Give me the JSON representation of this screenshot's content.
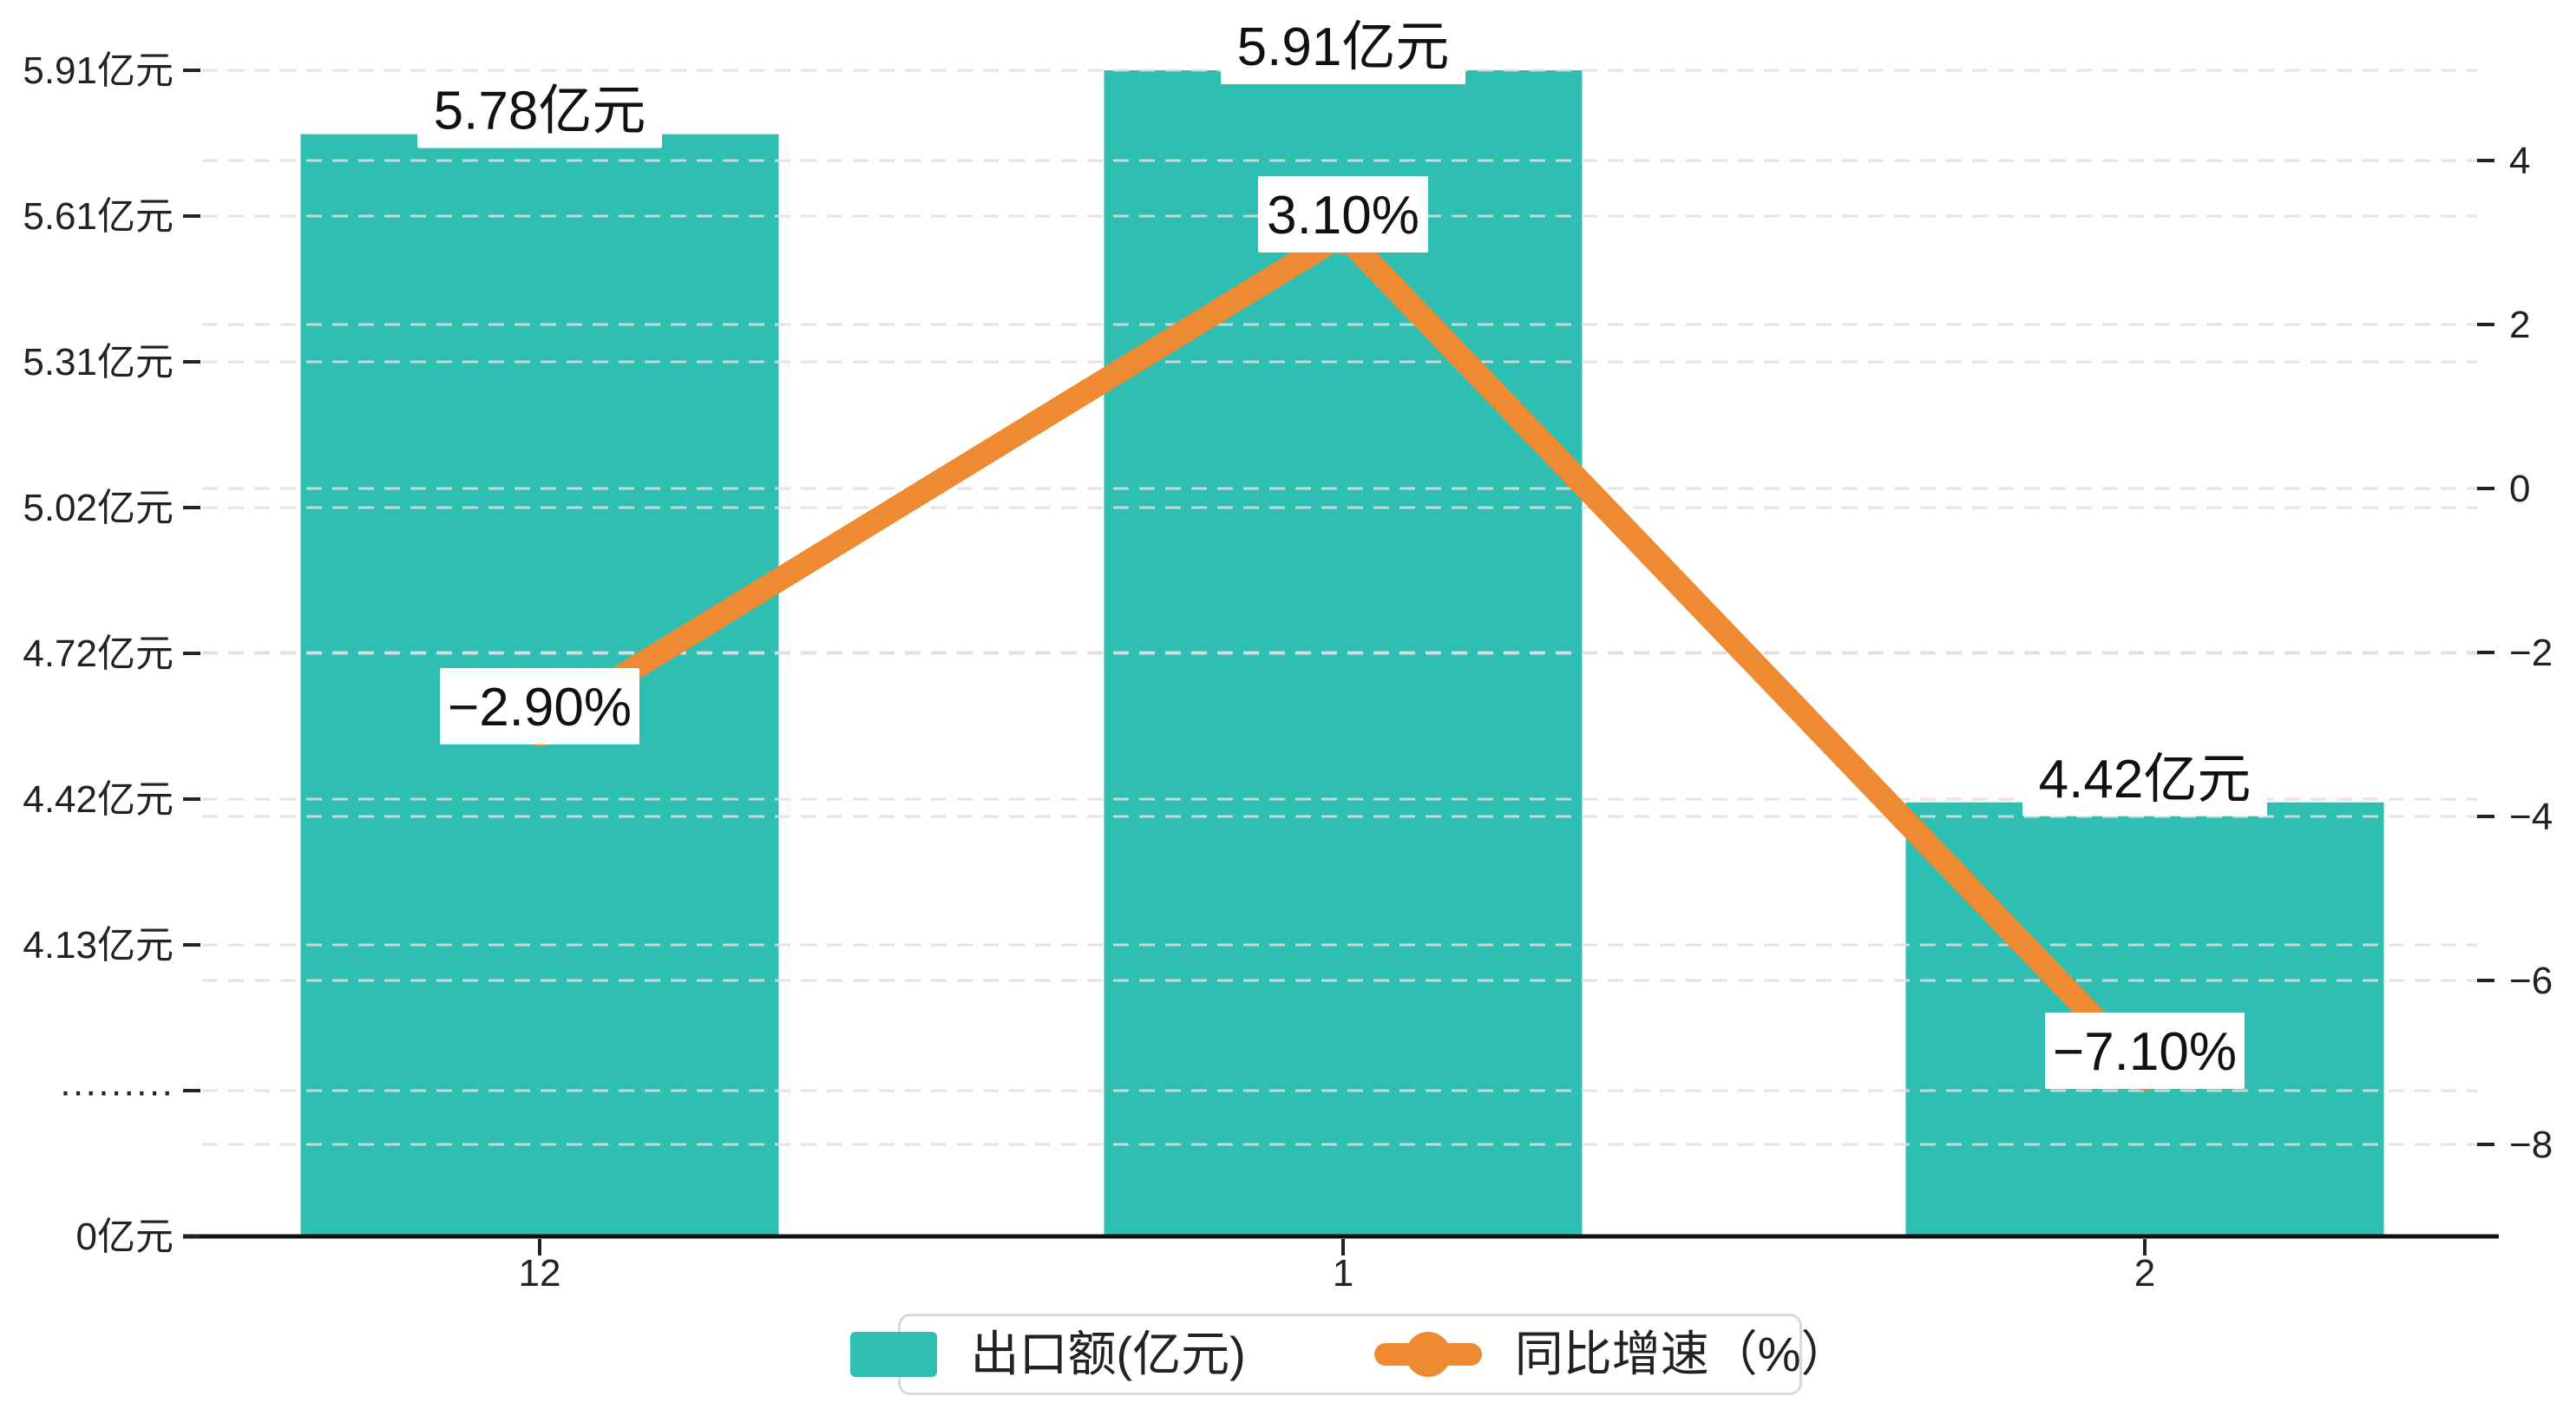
{
  "chart_data": {
    "type": "bar",
    "categories": [
      "12",
      "1",
      "2"
    ],
    "series": [
      {
        "name": "出口额(亿元)",
        "type": "bar",
        "values": [
          5.78,
          5.91,
          4.42
        ],
        "labels": [
          "5.78亿元",
          "5.91亿元",
          "4.42亿元"
        ],
        "color": "#2FBFB2"
      },
      {
        "name": "同比增速（%）",
        "type": "line",
        "values": [
          -2.9,
          3.1,
          -7.1
        ],
        "labels": [
          "−2.90%",
          "3.10%",
          "−7.10%"
        ],
        "color": "#EE8A31"
      }
    ],
    "left_axis": {
      "title": "",
      "unit": "亿元",
      "has_break": true,
      "ticks": [
        "5.91亿元",
        "5.61亿元",
        "5.31亿元",
        "5.02亿元",
        "4.72亿元",
        "4.42亿元",
        "4.13亿元",
        "·········",
        "0亿元"
      ],
      "tick_values_top_to_bottom": [
        5.91,
        5.61,
        5.31,
        5.02,
        4.72,
        4.42,
        4.13,
        null,
        0
      ]
    },
    "right_axis": {
      "title": "",
      "unit": "%",
      "range": [
        -8,
        4
      ],
      "ticks": [
        "4",
        "2",
        "0",
        "−2",
        "−4",
        "−6",
        "−8"
      ],
      "tick_values": [
        4,
        2,
        0,
        -2,
        -4,
        -6,
        -8
      ]
    },
    "grid": true,
    "grid_style": "dashed",
    "legend_position": "bottom"
  },
  "legend": {
    "items": [
      {
        "label": "出口额(亿元)",
        "color": "#2FBFB2",
        "marker": "bar-swatch"
      },
      {
        "label": "同比增速（%）",
        "color": "#EE8A31",
        "marker": "line-with-dot"
      }
    ]
  },
  "colors": {
    "bar": "#2FBFB2",
    "line": "#EE8A31",
    "grid": "#dedede",
    "axis": "#111111",
    "tick": "#222222",
    "text": "#222222",
    "label_text": "#111111",
    "label_bg": "#ffffff",
    "background": "#ffffff",
    "legend_border": "#d9d9d9"
  }
}
